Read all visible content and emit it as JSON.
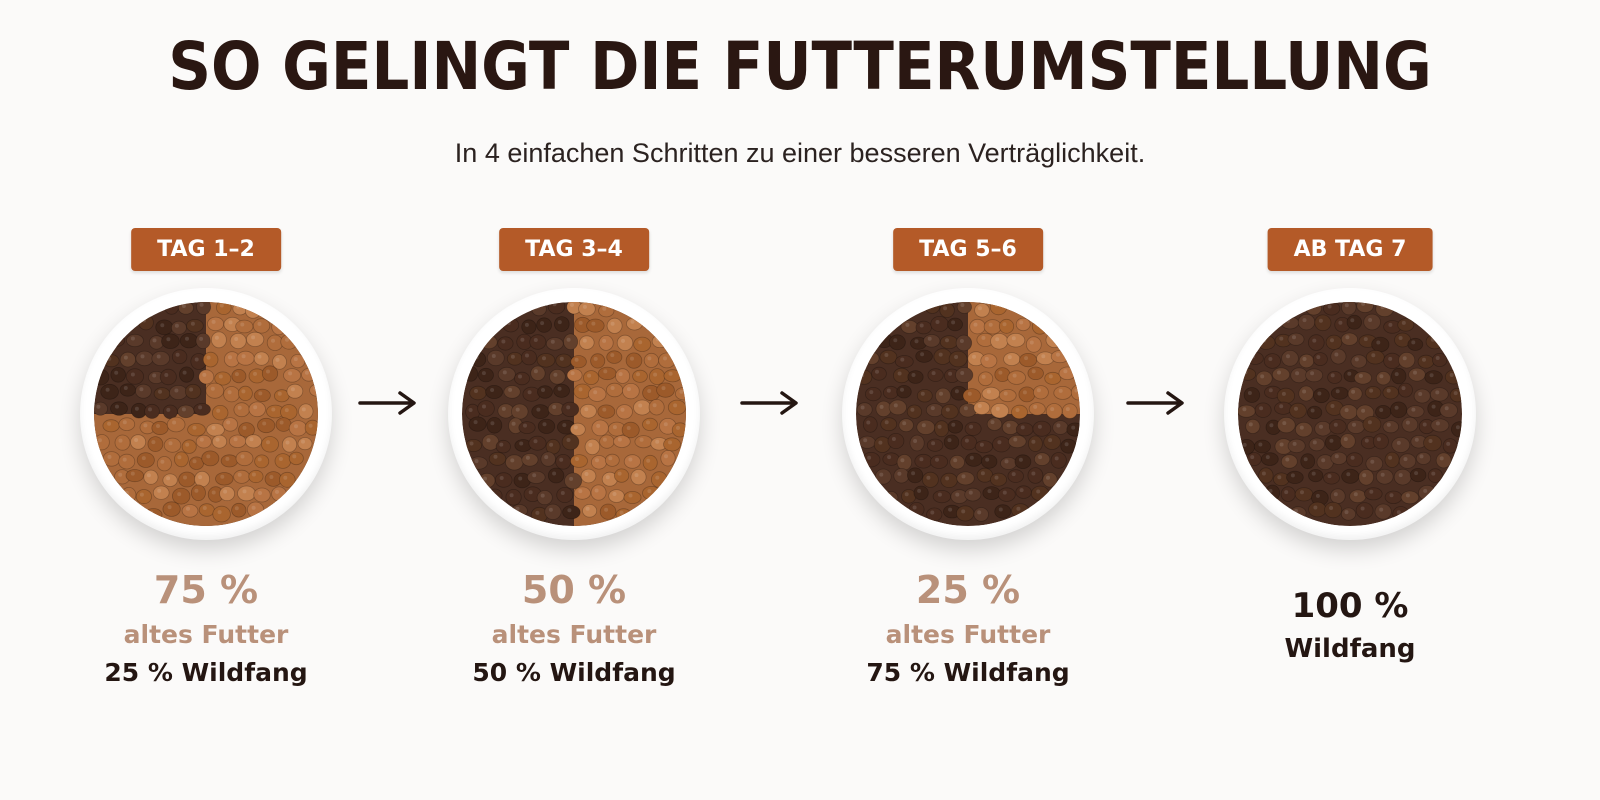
{
  "title": "SO GELINGT DIE FUTTERUMSTELLUNG",
  "subtitle": "In 4 einfachen Schritten zu einer besseren Verträglichkeit.",
  "colors": {
    "badge": "#b45a28",
    "old_food": "#a8683a",
    "new_food": "#4a2e22",
    "muted_text": "#b9917a",
    "dark_text": "#241612"
  },
  "steps": [
    {
      "badge": "TAG 1–2",
      "old_share": 0.75,
      "old_percent": "75 %",
      "old_label": "altes Futter",
      "new_label": "25 % Wildfang"
    },
    {
      "badge": "TAG 3–4",
      "old_share": 0.5,
      "old_percent": "50 %",
      "old_label": "altes Futter",
      "new_label": "50 % Wildfang"
    },
    {
      "badge": "TAG 5–6",
      "old_share": 0.25,
      "old_percent": "25 %",
      "old_label": "altes Futter",
      "new_label": "75 % Wildfang"
    },
    {
      "badge": "AB TAG 7",
      "old_share": 0,
      "final_percent": "100 %",
      "final_label": "Wildfang"
    }
  ],
  "arrow_icon": "arrow-right-icon"
}
